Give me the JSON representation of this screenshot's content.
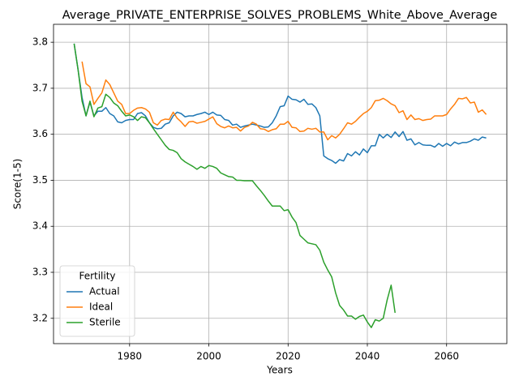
{
  "chart_data": {
    "type": "line",
    "title": "Average_PRIVATE_ENTERPRISE_SOLVES_PROBLEMS_White_Above_Average",
    "xlabel": "Years",
    "ylabel": "Score(1-5)",
    "xlim": [
      1960.8,
      2075.2
    ],
    "ylim": [
      3.145,
      3.839
    ],
    "xticks": [
      1980,
      2000,
      2020,
      2040,
      2060
    ],
    "yticks": [
      3.2,
      3.3,
      3.4,
      3.5,
      3.6,
      3.7,
      3.8
    ],
    "grid": true,
    "legend_title": "Fertility",
    "legend_loc": "lower left",
    "series": [
      {
        "name": "Actual",
        "color": "#1f77b4",
        "x": [
          1966,
          1967,
          1968,
          1969,
          1970,
          1971,
          1972,
          1973,
          1974,
          1975,
          1976,
          1977,
          1978,
          1979,
          1980,
          1981,
          1982,
          1983,
          1984,
          1985,
          1986,
          1987,
          1988,
          1989,
          1990,
          1991,
          1992,
          1993,
          1994,
          1995,
          1996,
          1997,
          1998,
          1999,
          2000,
          2001,
          2002,
          2003,
          2004,
          2005,
          2006,
          2007,
          2008,
          2009,
          2010,
          2011,
          2012,
          2013,
          2014,
          2015,
          2016,
          2017,
          2018,
          2019,
          2020,
          2021,
          2022,
          2023,
          2024,
          2025,
          2026,
          2027,
          2028,
          2029,
          2030,
          2031,
          2032,
          2033,
          2034,
          2035,
          2036,
          2037,
          2038,
          2039,
          2040,
          2041,
          2042,
          2043,
          2044,
          2045,
          2046,
          2047,
          2048,
          2049,
          2050,
          2051,
          2052,
          2053,
          2054,
          2055,
          2056,
          2057,
          2058,
          2059,
          2060,
          2061,
          2062,
          2063,
          2064,
          2065,
          2066,
          2067,
          2068,
          2069,
          2070
        ],
        "values": [
          3.797,
          3.74,
          3.68,
          3.64,
          3.67,
          3.64,
          3.65,
          3.65,
          3.658,
          3.645,
          3.64,
          3.627,
          3.625,
          3.63,
          3.632,
          3.632,
          3.645,
          3.647,
          3.64,
          3.625,
          3.615,
          3.612,
          3.613,
          3.622,
          3.625,
          3.64,
          3.648,
          3.645,
          3.638,
          3.64,
          3.64,
          3.643,
          3.645,
          3.648,
          3.643,
          3.648,
          3.642,
          3.641,
          3.632,
          3.63,
          3.62,
          3.622,
          3.615,
          3.618,
          3.62,
          3.622,
          3.62,
          3.618,
          3.615,
          3.616,
          3.625,
          3.64,
          3.66,
          3.662,
          3.683,
          3.676,
          3.675,
          3.67,
          3.676,
          3.665,
          3.666,
          3.658,
          3.64,
          3.553,
          3.547,
          3.543,
          3.537,
          3.545,
          3.542,
          3.558,
          3.553,
          3.562,
          3.555,
          3.568,
          3.56,
          3.575,
          3.575,
          3.6,
          3.592,
          3.6,
          3.593,
          3.605,
          3.595,
          3.606,
          3.587,
          3.59,
          3.577,
          3.582,
          3.577,
          3.576,
          3.576,
          3.572,
          3.58,
          3.574,
          3.58,
          3.575,
          3.583,
          3.579,
          3.582,
          3.582,
          3.585,
          3.59,
          3.587,
          3.594,
          3.592
        ]
      },
      {
        "name": "Ideal",
        "color": "#ff7f0e",
        "x": [
          1968,
          1969,
          1970,
          1971,
          1972,
          1973,
          1974,
          1975,
          1976,
          1977,
          1978,
          1979,
          1980,
          1981,
          1982,
          1983,
          1984,
          1985,
          1986,
          1987,
          1988,
          1989,
          1990,
          1991,
          1992,
          1993,
          1994,
          1995,
          1996,
          1997,
          1998,
          1999,
          2000,
          2001,
          2002,
          2003,
          2004,
          2005,
          2006,
          2007,
          2008,
          2009,
          2010,
          2011,
          2012,
          2013,
          2014,
          2015,
          2016,
          2017,
          2018,
          2019,
          2020,
          2021,
          2022,
          2023,
          2024,
          2025,
          2026,
          2027,
          2028,
          2029,
          2030,
          2031,
          2032,
          2033,
          2034,
          2035,
          2036,
          2037,
          2038,
          2039,
          2040,
          2041,
          2042,
          2043,
          2044,
          2045,
          2046,
          2047,
          2048,
          2049,
          2050,
          2051,
          2052,
          2053,
          2054,
          2055,
          2056,
          2057,
          2058,
          2059,
          2060,
          2061,
          2062,
          2063,
          2064,
          2065,
          2066,
          2067,
          2068,
          2069,
          2070
        ],
        "values": [
          3.758,
          3.71,
          3.703,
          3.665,
          3.678,
          3.69,
          3.718,
          3.708,
          3.69,
          3.672,
          3.665,
          3.645,
          3.645,
          3.652,
          3.657,
          3.658,
          3.655,
          3.648,
          3.625,
          3.62,
          3.63,
          3.633,
          3.632,
          3.648,
          3.635,
          3.627,
          3.617,
          3.627,
          3.628,
          3.624,
          3.626,
          3.628,
          3.633,
          3.638,
          3.623,
          3.617,
          3.614,
          3.618,
          3.614,
          3.615,
          3.607,
          3.615,
          3.618,
          3.626,
          3.622,
          3.612,
          3.611,
          3.606,
          3.61,
          3.612,
          3.622,
          3.622,
          3.628,
          3.615,
          3.614,
          3.606,
          3.607,
          3.613,
          3.611,
          3.613,
          3.605,
          3.605,
          3.588,
          3.597,
          3.592,
          3.6,
          3.612,
          3.625,
          3.622,
          3.628,
          3.637,
          3.645,
          3.65,
          3.658,
          3.673,
          3.674,
          3.678,
          3.673,
          3.666,
          3.662,
          3.647,
          3.651,
          3.632,
          3.642,
          3.632,
          3.634,
          3.63,
          3.632,
          3.633,
          3.64,
          3.64,
          3.64,
          3.643,
          3.655,
          3.665,
          3.678,
          3.677,
          3.68,
          3.668,
          3.67,
          3.648,
          3.653,
          3.643
        ]
      },
      {
        "name": "Sterile",
        "color": "#2ca02c",
        "x": [
          1966,
          1967,
          1968,
          1969,
          1970,
          1971,
          1972,
          1973,
          1974,
          1975,
          1976,
          1977,
          1978,
          1979,
          1980,
          1981,
          1982,
          1983,
          1984,
          1985,
          1986,
          1987,
          1988,
          1989,
          1990,
          1991,
          1992,
          1993,
          1994,
          1995,
          1996,
          1997,
          1998,
          1999,
          2000,
          2001,
          2002,
          2003,
          2004,
          2005,
          2006,
          2007,
          2008,
          2009,
          2010,
          2011,
          2012,
          2013,
          2014,
          2015,
          2016,
          2017,
          2018,
          2019,
          2020,
          2021,
          2022,
          2023,
          2024,
          2025,
          2026,
          2027,
          2028,
          2029,
          2030,
          2031,
          2032,
          2033,
          2034,
          2035,
          2036,
          2037,
          2038,
          2039,
          2040,
          2041,
          2042,
          2043,
          2044,
          2045,
          2046,
          2047
        ],
        "values": [
          3.797,
          3.74,
          3.672,
          3.64,
          3.672,
          3.638,
          3.657,
          3.66,
          3.687,
          3.68,
          3.668,
          3.662,
          3.65,
          3.64,
          3.642,
          3.638,
          3.63,
          3.638,
          3.636,
          3.625,
          3.612,
          3.6,
          3.588,
          3.576,
          3.567,
          3.565,
          3.56,
          3.547,
          3.54,
          3.535,
          3.53,
          3.524,
          3.53,
          3.526,
          3.532,
          3.53,
          3.526,
          3.516,
          3.512,
          3.508,
          3.507,
          3.5,
          3.5,
          3.499,
          3.499,
          3.499,
          3.488,
          3.478,
          3.467,
          3.455,
          3.444,
          3.444,
          3.444,
          3.434,
          3.436,
          3.42,
          3.408,
          3.38,
          3.372,
          3.364,
          3.362,
          3.36,
          3.348,
          3.322,
          3.305,
          3.29,
          3.255,
          3.228,
          3.218,
          3.205,
          3.205,
          3.198,
          3.204,
          3.207,
          3.192,
          3.18,
          3.197,
          3.194,
          3.2,
          3.24,
          3.272,
          3.212
        ]
      }
    ]
  }
}
